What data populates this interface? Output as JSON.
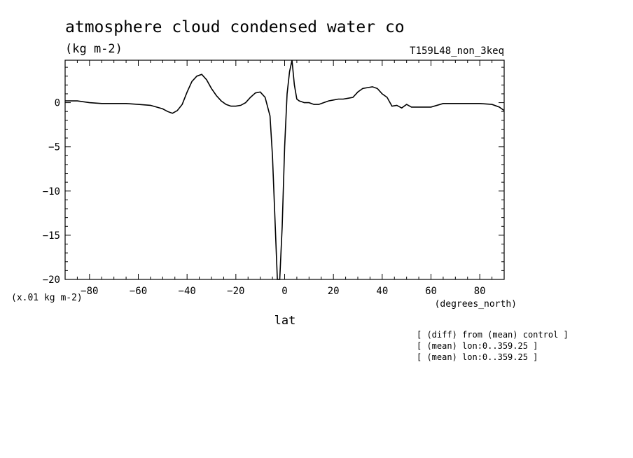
{
  "chart_data": {
    "type": "line",
    "title": "atmosphere cloud condensed water co",
    "units": "(kg m-2)",
    "experiment": "T159L48_non_3keq",
    "ylabel": "(x.01 kg m-2)",
    "xlabel": "lat",
    "xunits": "(degrees_north)",
    "xlim": [
      -90,
      90
    ],
    "ylim": [
      -20,
      4.8
    ],
    "xticks": [
      -80,
      -60,
      -40,
      -20,
      0,
      20,
      40,
      60,
      80
    ],
    "yticks": [
      0,
      -5,
      -10,
      -15,
      -20
    ],
    "grid": false,
    "x": [
      -90,
      -85,
      -80,
      -75,
      -70,
      -65,
      -60,
      -55,
      -50,
      -48,
      -46,
      -44,
      -42,
      -40,
      -38,
      -36,
      -34,
      -32,
      -30,
      -28,
      -26,
      -24,
      -22,
      -20,
      -18,
      -16,
      -14,
      -12,
      -10,
      -8,
      -6,
      -5,
      -4,
      -3,
      -2,
      -1,
      0,
      1,
      2,
      3,
      4,
      5,
      6,
      7,
      8,
      10,
      12,
      14,
      16,
      18,
      20,
      22,
      24,
      26,
      28,
      30,
      32,
      34,
      36,
      38,
      40,
      42,
      44,
      46,
      48,
      50,
      52,
      55,
      60,
      65,
      70,
      75,
      80,
      85,
      88,
      90
    ],
    "values": [
      0.2,
      0.2,
      0.0,
      -0.1,
      -0.1,
      -0.1,
      -0.2,
      -0.3,
      -0.7,
      -1.0,
      -1.2,
      -0.9,
      -0.2,
      1.2,
      2.4,
      3.0,
      3.2,
      2.6,
      1.6,
      0.8,
      0.2,
      -0.2,
      -0.4,
      -0.4,
      -0.3,
      0.0,
      0.6,
      1.1,
      1.2,
      0.6,
      -1.5,
      -6.0,
      -13.0,
      -20.0,
      -20.0,
      -14.0,
      -5.0,
      1.0,
      3.5,
      4.8,
      2.0,
      0.4,
      0.2,
      0.1,
      0.0,
      0.0,
      -0.2,
      -0.2,
      0.0,
      0.2,
      0.3,
      0.4,
      0.4,
      0.5,
      0.6,
      1.2,
      1.6,
      1.7,
      1.8,
      1.6,
      1.0,
      0.6,
      -0.4,
      -0.3,
      -0.6,
      -0.2,
      -0.5,
      -0.5,
      -0.5,
      -0.1,
      -0.1,
      -0.1,
      -0.1,
      -0.2,
      -0.5,
      -0.9
    ]
  },
  "notes": [
    "[ (diff) from (mean) control ]",
    "[ (mean) lon:0..359.25 ]",
    "[ (mean) lon:0..359.25 ]"
  ]
}
